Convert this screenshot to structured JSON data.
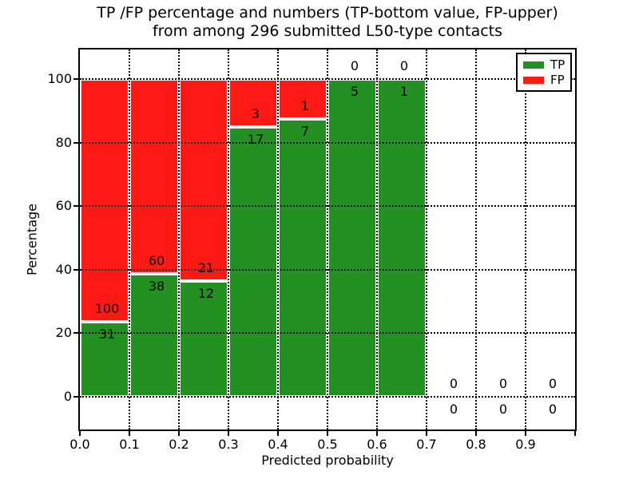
{
  "chart_data": {
    "type": "bar",
    "stacked": true,
    "title_line1": "TP /FP percentage and numbers (TP-bottom value, FP-upper)",
    "title_line2": "from among 296 submitted L50-type contacts",
    "xlabel": "Predicted probability",
    "ylabel": "Percentage",
    "total_contacts": 296,
    "xlim": [
      0.0,
      1.0
    ],
    "ylim": [
      -10.3,
      109.6
    ],
    "grid": "dotted, black, both axes",
    "x_tick_labels": [
      "0.0",
      "0.1",
      "0.2",
      "0.3",
      "0.4",
      "0.5",
      "0.6",
      "0.7",
      "0.8",
      "0.9"
    ],
    "y_ticks": [
      0,
      20,
      40,
      60,
      80,
      100
    ],
    "y_tick_labels": [
      "0",
      "20",
      "40",
      "60",
      "80",
      "100"
    ],
    "legend": {
      "position": "upper right",
      "entries": [
        {
          "label": "TP",
          "color": "#229122"
        },
        {
          "label": "FP",
          "color": "#fe1a14"
        }
      ]
    },
    "bins": [
      {
        "x_start": 0.0,
        "x_end": 0.1,
        "tp_count": 31,
        "fp_count": 100,
        "tp_pct": 23.66,
        "fp_pct": 76.34
      },
      {
        "x_start": 0.1,
        "x_end": 0.2,
        "tp_count": 38,
        "fp_count": 60,
        "tp_pct": 38.78,
        "fp_pct": 61.22
      },
      {
        "x_start": 0.2,
        "x_end": 0.3,
        "tp_count": 12,
        "fp_count": 21,
        "tp_pct": 36.36,
        "fp_pct": 63.64
      },
      {
        "x_start": 0.3,
        "x_end": 0.4,
        "tp_count": 17,
        "fp_count": 3,
        "tp_pct": 85.0,
        "fp_pct": 15.0
      },
      {
        "x_start": 0.4,
        "x_end": 0.5,
        "tp_count": 7,
        "fp_count": 1,
        "tp_pct": 87.5,
        "fp_pct": 12.5
      },
      {
        "x_start": 0.5,
        "x_end": 0.6,
        "tp_count": 5,
        "fp_count": 0,
        "tp_pct": 100.0,
        "fp_pct": 0.0
      },
      {
        "x_start": 0.6,
        "x_end": 0.7,
        "tp_count": 1,
        "fp_count": 0,
        "tp_pct": 100.0,
        "fp_pct": 0.0
      },
      {
        "x_start": 0.7,
        "x_end": 0.8,
        "tp_count": 0,
        "fp_count": 0,
        "tp_pct": 0.0,
        "fp_pct": 0.0
      },
      {
        "x_start": 0.8,
        "x_end": 0.9,
        "tp_count": 0,
        "fp_count": 0,
        "tp_pct": 0.0,
        "fp_pct": 0.0
      },
      {
        "x_start": 0.9,
        "x_end": 1.0,
        "tp_count": 0,
        "fp_count": 0,
        "tp_pct": 0.0,
        "fp_pct": 0.0
      }
    ],
    "colors": {
      "tp": "#229122",
      "fp": "#fe1a14",
      "grid": "#000000",
      "text": "#000000",
      "background": "#ffffff",
      "bar_edge": "#ffffff",
      "spine": "#000000"
    }
  }
}
